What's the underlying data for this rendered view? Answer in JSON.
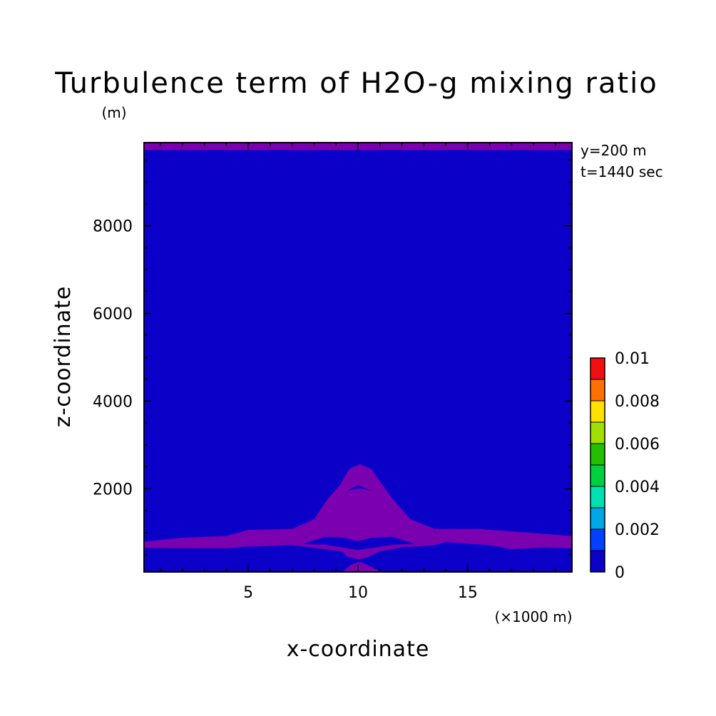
{
  "chart_data": {
    "type": "heatmap",
    "title": "Turbulence term of H2O-g mixing ratio",
    "ylabel_unit": "(m)",
    "xlabel": "x-coordinate",
    "xlabel_unit": "(×1000 m)",
    "ylabel": "z-coordinate",
    "annotations": [
      "y=200 m",
      "t=1440 sec"
    ],
    "xlim": [
      0.25,
      19.75
    ],
    "ylim": [
      100,
      9900
    ],
    "x_ticks": [
      5,
      10,
      15
    ],
    "y_ticks": [
      2000,
      4000,
      6000,
      8000
    ],
    "background_color": "#0A00C8",
    "colorbar": {
      "tick_labels": [
        "0.01",
        "0.008",
        "0.006",
        "0.004",
        "0.002",
        "0"
      ],
      "levels": [
        0,
        0.001,
        0.002,
        0.003,
        0.004,
        0.005,
        0.006,
        0.007,
        0.008,
        0.009,
        0.01
      ],
      "colors": [
        "#0A00C8",
        "#0040FF",
        "#00A6E6",
        "#00E0B0",
        "#00D040",
        "#22C000",
        "#A0E000",
        "#FFE000",
        "#FF7000",
        "#F01010"
      ]
    },
    "contours": [
      {
        "level": "<0",
        "color": "#7A00B0",
        "polygon": [
          [
            0.25,
            9900
          ],
          [
            19.75,
            9900
          ],
          [
            19.75,
            9730
          ],
          [
            0.25,
            9730
          ]
        ]
      },
      {
        "level": "<0",
        "color": "#7A00B0",
        "polygon": [
          [
            0.25,
            790
          ],
          [
            2,
            880
          ],
          [
            4,
            920
          ],
          [
            5,
            1060
          ],
          [
            7,
            1080
          ],
          [
            8,
            1300
          ],
          [
            8.6,
            1750
          ],
          [
            9.2,
            2100
          ],
          [
            9.6,
            2450
          ],
          [
            10.1,
            2560
          ],
          [
            10.6,
            2450
          ],
          [
            11.1,
            2100
          ],
          [
            11.6,
            1750
          ],
          [
            12.4,
            1300
          ],
          [
            13.5,
            1080
          ],
          [
            15.5,
            1080
          ],
          [
            19.75,
            920
          ],
          [
            19.75,
            640
          ],
          [
            18.5,
            660
          ],
          [
            17,
            620
          ],
          [
            16,
            710
          ],
          [
            14,
            780
          ],
          [
            13.5,
            710
          ],
          [
            12,
            660
          ],
          [
            11,
            570
          ],
          [
            10.5,
            450
          ],
          [
            10.05,
            380
          ],
          [
            9.5,
            450
          ],
          [
            9.3,
            560
          ],
          [
            8.5,
            620
          ],
          [
            7,
            710
          ],
          [
            5,
            680
          ],
          [
            4,
            640
          ],
          [
            1.8,
            640
          ],
          [
            0.25,
            650
          ]
        ]
      },
      {
        "level": "0",
        "color": "#0A00C8",
        "polygon": [
          [
            9.5,
            1950
          ],
          [
            10,
            2080
          ],
          [
            10.6,
            1950
          ],
          [
            10.3,
            1990
          ],
          [
            10.0,
            2000
          ],
          [
            9.8,
            1990
          ]
        ]
      },
      {
        "level": "0",
        "color": "#0A00C8",
        "polygon": [
          [
            7.5,
            740
          ],
          [
            8.5,
            900
          ],
          [
            9.4,
            880
          ],
          [
            10,
            800
          ],
          [
            10.6,
            880
          ],
          [
            11.6,
            900
          ],
          [
            12.6,
            740
          ],
          [
            11.6,
            720
          ],
          [
            10,
            600
          ],
          [
            8.5,
            720
          ]
        ]
      },
      {
        "level": "<0",
        "color": "#7A00B0",
        "polygon": [
          [
            9.3,
            110
          ],
          [
            9.7,
            270
          ],
          [
            10.05,
            330
          ],
          [
            10.4,
            270
          ],
          [
            11,
            110
          ]
        ]
      }
    ]
  }
}
